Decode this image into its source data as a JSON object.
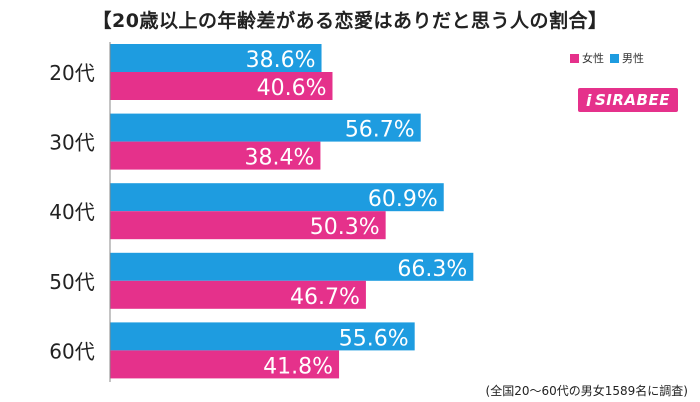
{
  "chart_data": {
    "type": "bar",
    "orientation": "horizontal",
    "title": "【20歳以上の年齢差がある恋愛はありだと思う人の割合】",
    "categories": [
      "20代",
      "30代",
      "40代",
      "50代",
      "60代"
    ],
    "series": [
      {
        "name": "男性",
        "color": "#1e9ce0",
        "values": [
          38.6,
          56.7,
          60.9,
          66.3,
          55.6
        ],
        "labels": [
          "38.6%",
          "56.7%",
          "60.9%",
          "66.3%",
          "55.6%"
        ]
      },
      {
        "name": "女性",
        "color": "#e5318b",
        "values": [
          40.6,
          38.4,
          50.3,
          46.7,
          41.8
        ],
        "labels": [
          "40.6%",
          "38.4%",
          "50.3%",
          "46.7%",
          "41.8%"
        ]
      }
    ],
    "legend": [
      {
        "name": "女性",
        "color": "#e5318b"
      },
      {
        "name": "男性",
        "color": "#1e9ce0"
      }
    ],
    "legend_position": "top-right",
    "xlim": [
      0,
      100
    ],
    "grid": false,
    "footnote": "(全国20～60代の男女1589名に調査)"
  },
  "logo": {
    "text": "SIRABEE",
    "mark": "i"
  }
}
